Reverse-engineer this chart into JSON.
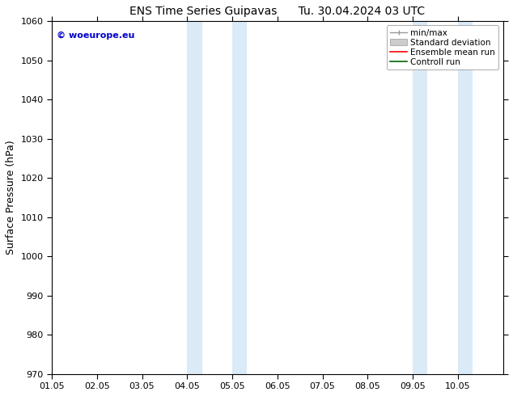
{
  "title_left": "ENS Time Series Guipavas",
  "title_right": "Tu. 30.04.2024 03 UTC",
  "ylabel": "Surface Pressure (hPa)",
  "ylim": [
    970,
    1060
  ],
  "yticks": [
    970,
    980,
    990,
    1000,
    1010,
    1020,
    1030,
    1040,
    1050,
    1060
  ],
  "xlim_start": 0.0,
  "xlim_end": 10.0,
  "xtick_labels": [
    "01.05",
    "02.05",
    "03.05",
    "04.05",
    "05.05",
    "06.05",
    "07.05",
    "08.05",
    "09.05",
    "10.05"
  ],
  "xtick_positions": [
    0,
    1,
    2,
    3,
    4,
    5,
    6,
    7,
    8,
    9
  ],
  "shaded_regions": [
    {
      "x_start": 3.0,
      "x_end": 3.33,
      "color": "#dbeaf7"
    },
    {
      "x_start": 4.0,
      "x_end": 4.33,
      "color": "#dbeaf7"
    },
    {
      "x_start": 8.0,
      "x_end": 8.33,
      "color": "#dbeaf7"
    },
    {
      "x_start": 9.0,
      "x_end": 9.33,
      "color": "#dbeaf7"
    }
  ],
  "watermark_text": "© woeurope.eu",
  "watermark_color": "#0000cc",
  "bg_color": "#ffffff",
  "spine_color": "#000000",
  "tick_color": "#000000",
  "title_fontsize": 10,
  "label_fontsize": 9,
  "tick_fontsize": 8,
  "legend_fontsize": 7.5
}
